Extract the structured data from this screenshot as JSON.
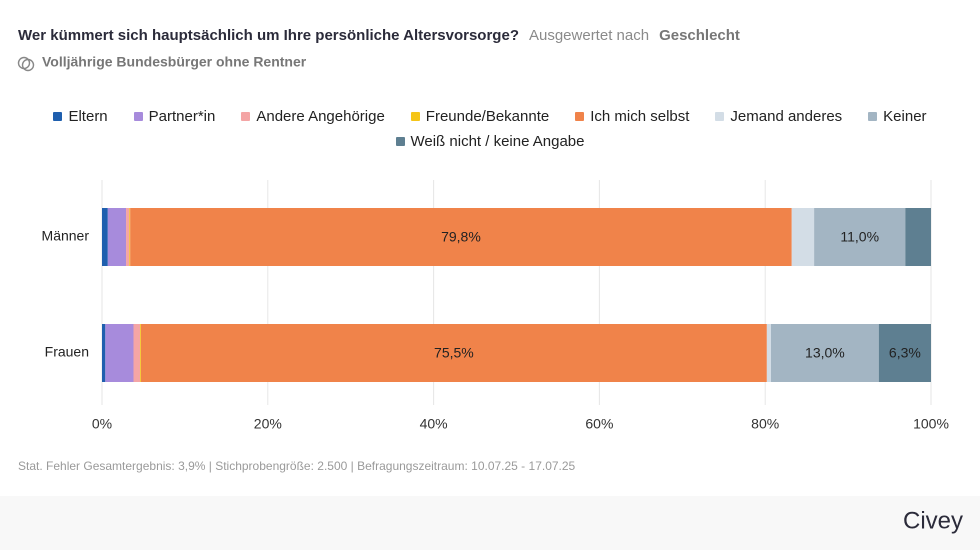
{
  "header": {
    "title": "Wer kümmert sich hauptsächlich um Ihre persönliche Altersvorsorge?",
    "evaluated_by": "Ausgewertet nach",
    "group": "Geschlecht",
    "subtitle": "Volljährige Bundesbürger ohne Rentner"
  },
  "chart_data": {
    "type": "bar",
    "orientation": "horizontal",
    "stacked": true,
    "categories": [
      "Männer",
      "Frauen"
    ],
    "series": [
      {
        "name": "Eltern",
        "color": "#1f5fae",
        "values": [
          0.7,
          0.4
        ]
      },
      {
        "name": "Partner*in",
        "color": "#a78bdc",
        "values": [
          2.2,
          3.4
        ]
      },
      {
        "name": "Andere Angehörige",
        "color": "#f4a5a5",
        "values": [
          0.4,
          0.8
        ]
      },
      {
        "name": "Freunde/Bekannte",
        "color": "#f5c518",
        "values": [
          0.1,
          0.1
        ]
      },
      {
        "name": "Ich mich selbst",
        "color": "#f0834a",
        "values": [
          79.8,
          75.5
        ],
        "value_labels": [
          "79,8%",
          "75,5%"
        ]
      },
      {
        "name": "Jemand anderes",
        "color": "#d3dde6",
        "values": [
          2.7,
          0.5
        ]
      },
      {
        "name": "Keiner",
        "color": "#a3b5c3",
        "values": [
          11.0,
          13.0
        ],
        "value_labels": [
          "11,0%",
          "13,0%"
        ]
      },
      {
        "name": "Weiß nicht / keine Angabe",
        "color": "#5e7f91",
        "values": [
          3.1,
          6.3
        ],
        "value_labels": [
          null,
          "6,3%"
        ]
      }
    ],
    "xlim": [
      0,
      100
    ],
    "xticks": [
      {
        "value": 0,
        "label": "0%"
      },
      {
        "value": 20,
        "label": "20%"
      },
      {
        "value": 40,
        "label": "40%"
      },
      {
        "value": 60,
        "label": "60%"
      },
      {
        "value": 80,
        "label": "80%"
      },
      {
        "value": 100,
        "label": "100%"
      }
    ],
    "grid": true
  },
  "footer": {
    "note": "Stat. Fehler Gesamtergebnis: 3,9% | Stichprobengröße: 2.500 | Befragungszeitraum: 10.07.25 - 17.07.25",
    "brand": "Civey"
  }
}
